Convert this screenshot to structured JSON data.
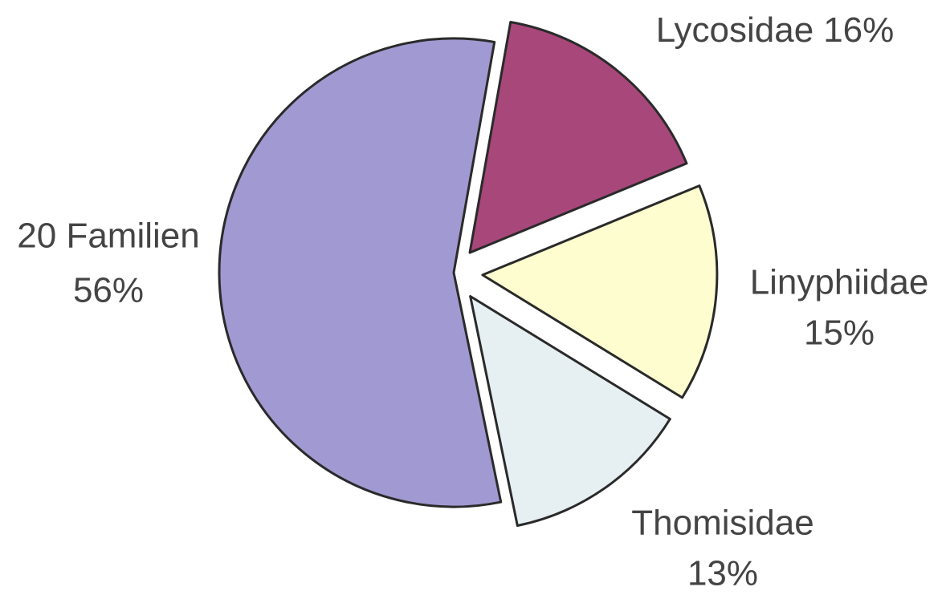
{
  "chart_data": {
    "type": "pie",
    "categories": [
      "Lycosidae",
      "Linyphiidae",
      "Thomisidae",
      "20 Familien"
    ],
    "values": [
      16,
      15,
      13,
      56
    ],
    "value_labels": [
      "16%",
      "15%",
      "13%",
      "56%"
    ],
    "colors": [
      "#a8477a",
      "#fdfdd0",
      "#e6eff2",
      "#a199d1"
    ]
  }
}
